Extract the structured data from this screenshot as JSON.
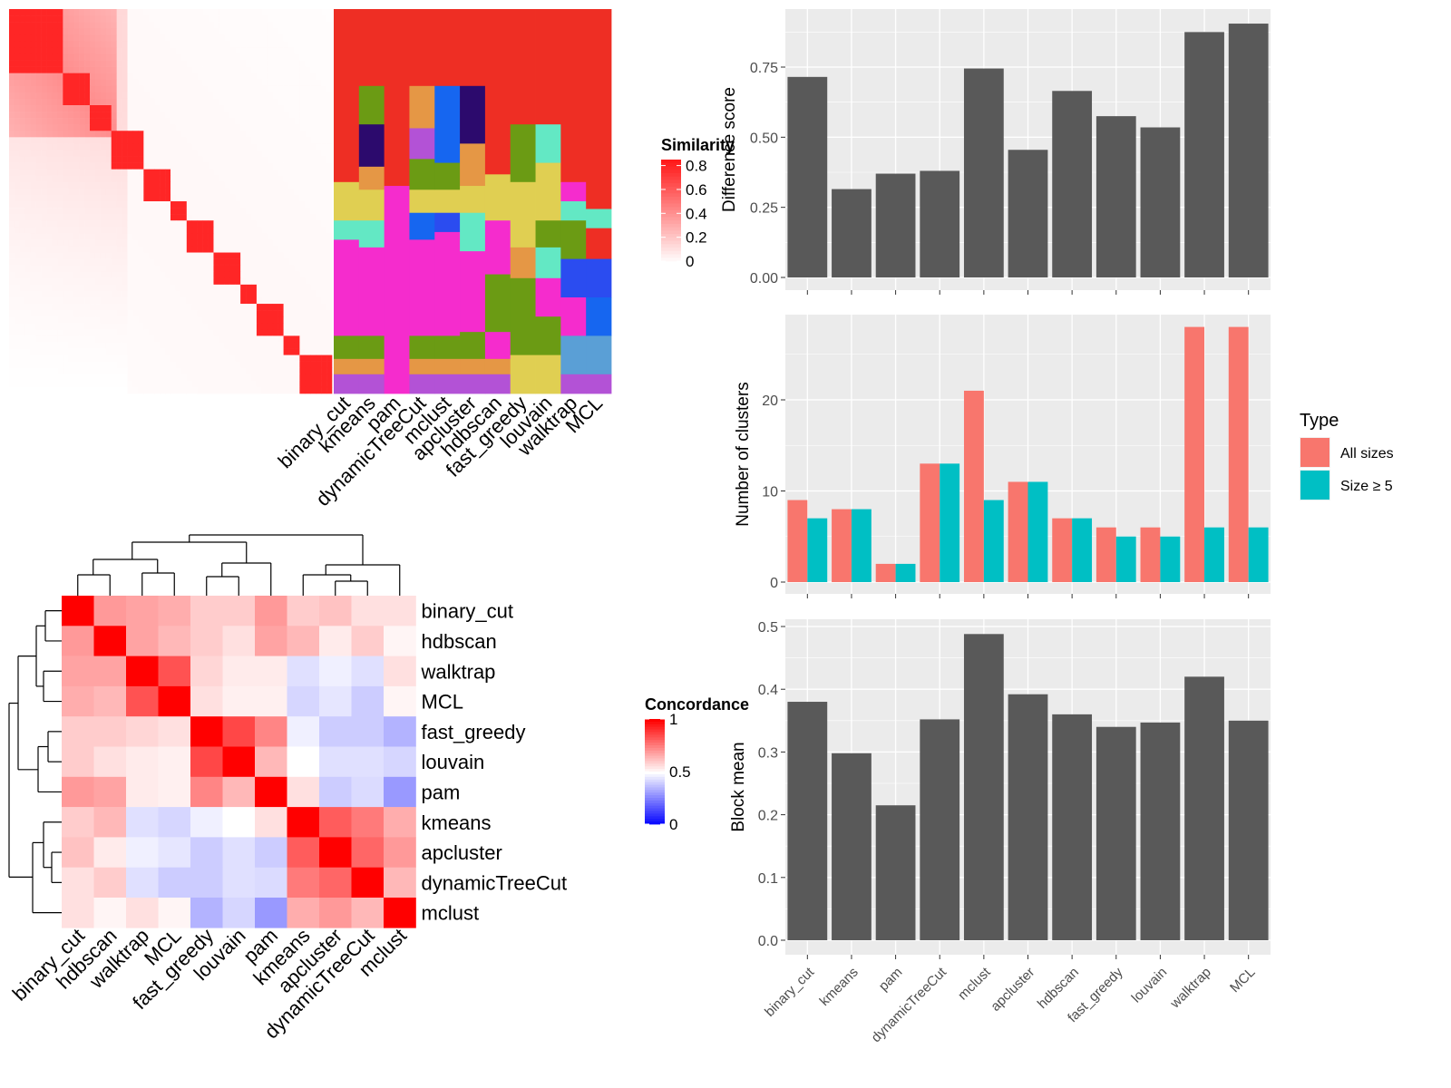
{
  "chart_data": [
    {
      "type": "heatmap",
      "panel": "similarity-heatmap",
      "legend_title": "Similarity",
      "legend_ticks": [
        "0",
        "0.2",
        "0.4",
        "0.6",
        "0.8"
      ],
      "color_range": [
        "#ffffff",
        "#ff0000"
      ],
      "diagonal_blocks": [
        0.07,
        0.035,
        0.03,
        0.045,
        0.035,
        0.02,
        0.04,
        0.03,
        0.025,
        0.035,
        0.02,
        0.05
      ],
      "cluster_methods": [
        "binary_cut",
        "kmeans",
        "pam",
        "dynamicTreeCut",
        "mclust",
        "apcluster",
        "hdbscan",
        "fast_greedy",
        "louvain",
        "walktrap",
        "MCL"
      ]
    },
    {
      "type": "heatmap",
      "panel": "concordance-heatmap",
      "legend_title": "Concordance",
      "legend_ticks": [
        "0",
        "0.5",
        "1"
      ],
      "color_range": [
        "#0000ff",
        "#ffffff",
        "#ff0000"
      ],
      "rows": [
        "binary_cut",
        "hdbscan",
        "walktrap",
        "MCL",
        "fast_greedy",
        "louvain",
        "pam",
        "kmeans",
        "apcluster",
        "dynamicTreeCut",
        "mclust"
      ],
      "columns": [
        "binary_cut",
        "hdbscan",
        "walktrap",
        "MCL",
        "fast_greedy",
        "louvain",
        "pam",
        "kmeans",
        "apcluster",
        "dynamicTreeCut",
        "mclust"
      ],
      "values": [
        [
          1.0,
          0.7,
          0.68,
          0.66,
          0.6,
          0.6,
          0.7,
          0.6,
          0.62,
          0.56,
          0.56
        ],
        [
          0.7,
          1.0,
          0.68,
          0.64,
          0.6,
          0.56,
          0.68,
          0.64,
          0.54,
          0.6,
          0.52
        ],
        [
          0.68,
          0.68,
          1.0,
          0.84,
          0.58,
          0.54,
          0.54,
          0.44,
          0.47,
          0.44,
          0.56
        ],
        [
          0.66,
          0.64,
          0.84,
          1.0,
          0.56,
          0.53,
          0.53,
          0.42,
          0.45,
          0.4,
          0.52
        ],
        [
          0.6,
          0.6,
          0.58,
          0.56,
          1.0,
          0.86,
          0.74,
          0.47,
          0.4,
          0.4,
          0.35
        ],
        [
          0.6,
          0.56,
          0.54,
          0.53,
          0.86,
          1.0,
          0.64,
          0.5,
          0.44,
          0.44,
          0.42
        ],
        [
          0.7,
          0.68,
          0.54,
          0.53,
          0.74,
          0.64,
          1.0,
          0.56,
          0.4,
          0.43,
          0.3
        ],
        [
          0.6,
          0.64,
          0.44,
          0.42,
          0.47,
          0.5,
          0.56,
          1.0,
          0.82,
          0.76,
          0.66
        ],
        [
          0.62,
          0.54,
          0.47,
          0.45,
          0.4,
          0.44,
          0.4,
          0.82,
          1.0,
          0.8,
          0.7
        ],
        [
          0.56,
          0.6,
          0.44,
          0.4,
          0.4,
          0.44,
          0.43,
          0.76,
          0.8,
          1.0,
          0.64
        ],
        [
          0.56,
          0.52,
          0.56,
          0.52,
          0.35,
          0.42,
          0.3,
          0.66,
          0.7,
          0.64,
          1.0
        ]
      ]
    },
    {
      "type": "bar",
      "panel": "difference-score",
      "categories": [
        "binary_cut",
        "kmeans",
        "pam",
        "dynamicTreeCut",
        "mclust",
        "apcluster",
        "hdbscan",
        "fast_greedy",
        "louvain",
        "walktrap",
        "MCL"
      ],
      "values": [
        0.715,
        0.315,
        0.37,
        0.38,
        0.745,
        0.455,
        0.665,
        0.575,
        0.535,
        0.875,
        0.905
      ],
      "ylabel": "Difference score",
      "yticks": [
        "0.00",
        "0.25",
        "0.50",
        "0.75"
      ],
      "ylim": [
        0,
        0.94
      ],
      "grid": true
    },
    {
      "type": "bar",
      "panel": "number-of-clusters",
      "categories": [
        "binary_cut",
        "kmeans",
        "pam",
        "dynamicTreeCut",
        "mclust",
        "apcluster",
        "hdbscan",
        "fast_greedy",
        "louvain",
        "walktrap",
        "MCL"
      ],
      "series": [
        {
          "name": "All sizes",
          "color": "#f8766d",
          "values": [
            9,
            8,
            2,
            13,
            21,
            11,
            7,
            6,
            6,
            28,
            28
          ]
        },
        {
          "name": "Size ≥ 5",
          "color": "#00bfc4",
          "values": [
            7,
            8,
            2,
            13,
            9,
            11,
            7,
            5,
            5,
            6,
            6
          ]
        }
      ],
      "ylabel": "Number of clusters",
      "yticks": [
        "0",
        "10",
        "20"
      ],
      "ylim": [
        0,
        29.5
      ],
      "legend_title": "Type",
      "legend_position": "right",
      "grid": true
    },
    {
      "type": "bar",
      "panel": "block-mean",
      "categories": [
        "binary_cut",
        "kmeans",
        "pam",
        "dynamicTreeCut",
        "mclust",
        "apcluster",
        "hdbscan",
        "fast_greedy",
        "louvain",
        "walktrap",
        "MCL"
      ],
      "values": [
        0.38,
        0.298,
        0.215,
        0.352,
        0.488,
        0.392,
        0.36,
        0.34,
        0.347,
        0.42,
        0.35
      ],
      "ylabel": "Block mean",
      "yticks": [
        "0.0",
        "0.1",
        "0.2",
        "0.3",
        "0.4",
        "0.5"
      ],
      "ylim": [
        0,
        0.512
      ],
      "grid": true
    }
  ]
}
